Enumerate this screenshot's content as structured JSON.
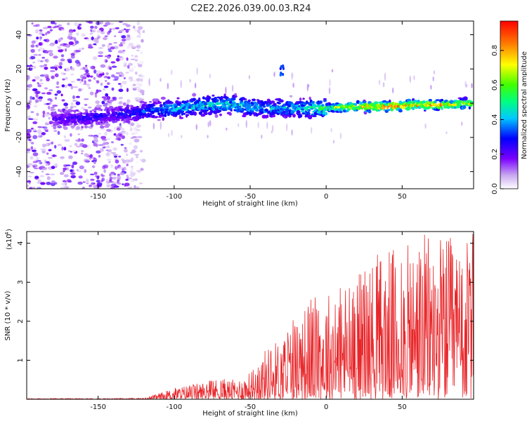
{
  "title": "C2E2.2026.039.00.03.R24",
  "chart_data": [
    {
      "type": "heatmap",
      "name": "spectrogram",
      "xlabel": "Height of straight line (km)",
      "ylabel": "Frequency (Hz)",
      "xlim": [
        -197,
        97
      ],
      "ylim": [
        -50,
        48
      ],
      "xticks": [
        -150,
        -100,
        -50,
        0,
        50
      ],
      "yticks": [
        -40,
        -20,
        0,
        20,
        40
      ],
      "colorbar": {
        "label": "Normalized spectral amplitude",
        "range": [
          0,
          0.97
        ],
        "ticks": [
          "0.0",
          "0.2",
          "0.4",
          "0.6",
          "0.8"
        ]
      },
      "ridge": {
        "x": [
          -197,
          -170,
          -150,
          -130,
          -110,
          -100,
          -80,
          -60,
          -40,
          -20,
          0,
          20,
          40,
          60,
          80,
          97
        ],
        "frequency": [
          -8,
          -9,
          -8,
          -6,
          -4,
          -3,
          -1,
          -1,
          -3,
          -3,
          -3,
          -2,
          -2,
          -1,
          -1,
          0
        ],
        "peak_amplitude": [
          0.2,
          0.25,
          0.28,
          0.3,
          0.4,
          0.45,
          0.5,
          0.5,
          0.45,
          0.45,
          0.6,
          0.78,
          0.92,
          0.85,
          0.8,
          0.7
        ]
      }
    },
    {
      "type": "line",
      "name": "snr",
      "xlabel": "Height of straight line (km)",
      "ylabel": "SNR (10 * v/v)",
      "y_scale_label": "(x10",
      "y_scale_exp": "4",
      "xlim": [
        -197,
        97
      ],
      "ylim": [
        0,
        4.3
      ],
      "xticks": [
        -150,
        -100,
        -50,
        0,
        50
      ],
      "yticks": [
        1,
        2,
        3,
        4
      ],
      "series": [
        {
          "name": "SNR",
          "color": "#e8262a",
          "x": [
            -197,
            -150,
            -120,
            -112,
            -100,
            -80,
            -70,
            -60,
            -50,
            -40,
            -30,
            -20,
            -10,
            0,
            10,
            20,
            30,
            40,
            50,
            60,
            70,
            80,
            90,
            97
          ],
          "envelope": [
            0.02,
            0.02,
            0.03,
            0.12,
            0.3,
            0.45,
            0.55,
            0.5,
            0.7,
            1.3,
            1.6,
            2.2,
            2.6,
            2.8,
            3.0,
            3.3,
            3.6,
            3.9,
            3.8,
            4.2,
            4.3,
            4.2,
            4.0,
            4.3
          ]
        }
      ]
    }
  ]
}
